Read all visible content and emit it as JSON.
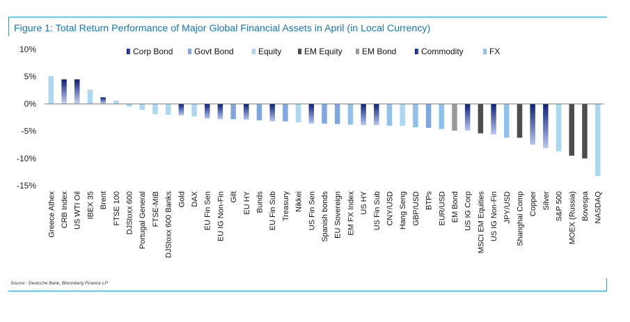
{
  "chart_data": {
    "type": "bar",
    "title": "Figure 1: Total Return Performance of Major Global Financial Assets in April (in Local Currency)",
    "source": "Source : Deutsche Bank, Bloomberg Finance LP",
    "xlabel": "",
    "ylabel": "",
    "ylim": [
      -15,
      10
    ],
    "yticks": [
      10,
      5,
      0,
      -5,
      -10,
      -15
    ],
    "ytick_labels": [
      "10%",
      "5%",
      "0%",
      "-5%",
      "-10%",
      "-15%"
    ],
    "legend": [
      {
        "name": "Corp Bond",
        "color": "#0b1f7a",
        "style": "gradient"
      },
      {
        "name": "Govt Bond",
        "color": "#7fa7e0",
        "style": "solid"
      },
      {
        "name": "Equity",
        "color": "#a9d8f0",
        "style": "solid"
      },
      {
        "name": "EM Equity",
        "color": "#4d4d4d",
        "style": "solid"
      },
      {
        "name": "EM Bond",
        "color": "#9a9a9a",
        "style": "solid"
      },
      {
        "name": "Commodity",
        "color": "#0b1f7a",
        "style": "gradient"
      },
      {
        "name": "FX",
        "color": "#8fc1ea",
        "style": "solid"
      }
    ],
    "categories": [
      "Greece Athex",
      "CRB Index",
      "US WTI Oil",
      "IBEX 35",
      "Brent",
      "FTSE 100",
      "DJStoxx 600",
      "Portugal General",
      "FTSE-MIB",
      "DJStoxx 600 Banks",
      "Gold",
      "DAX",
      "EU Fin Sen",
      "EU IG Non-Fin",
      "Gilt",
      "EU HY",
      "Bunds",
      "EU Fin Sub",
      "Treasury",
      "Nikkei",
      "US Fin Sen",
      "Spanish bonds",
      "EU Sovereign",
      "EM FX Index",
      "US HY",
      "US Fin Sub",
      "CNY/USD",
      "Hang Seng",
      "GBP/USD",
      "BTPs",
      "EUR/USD",
      "EM Bond",
      "US IG Corp",
      "MSCI EM Equities",
      "US IG Non-Fin",
      "JPY/USD",
      "Shanghai Comp",
      "Copper",
      "Silver",
      "S&P 500",
      "MOEX (Russia)",
      "Bovespa",
      "NASDAQ"
    ],
    "asset_class": [
      "Equity",
      "Commodity",
      "Commodity",
      "Equity",
      "Commodity",
      "Equity",
      "Equity",
      "Equity",
      "Equity",
      "Equity",
      "Commodity",
      "Equity",
      "Corp Bond",
      "Corp Bond",
      "Govt Bond",
      "Corp Bond",
      "Govt Bond",
      "Corp Bond",
      "Govt Bond",
      "Equity",
      "Corp Bond",
      "Govt Bond",
      "Govt Bond",
      "FX",
      "Corp Bond",
      "Corp Bond",
      "FX",
      "Equity",
      "FX",
      "Govt Bond",
      "FX",
      "EM Bond",
      "Corp Bond",
      "EM Equity",
      "Corp Bond",
      "FX",
      "EM Equity",
      "Commodity",
      "Commodity",
      "Equity",
      "EM Equity",
      "EM Equity",
      "Equity"
    ],
    "values": [
      5.1,
      4.5,
      4.5,
      2.6,
      1.2,
      0.6,
      -0.5,
      -1.1,
      -1.9,
      -2.0,
      -2.1,
      -2.3,
      -2.7,
      -2.8,
      -2.8,
      -2.9,
      -3.0,
      -3.2,
      -3.2,
      -3.4,
      -3.6,
      -3.6,
      -3.7,
      -3.8,
      -3.9,
      -3.9,
      -4.0,
      -4.0,
      -4.3,
      -4.4,
      -4.6,
      -4.9,
      -4.9,
      -5.4,
      -5.6,
      -6.2,
      -6.2,
      -7.5,
      -8.1,
      -8.7,
      -9.5,
      -10.0,
      -13.2
    ]
  }
}
